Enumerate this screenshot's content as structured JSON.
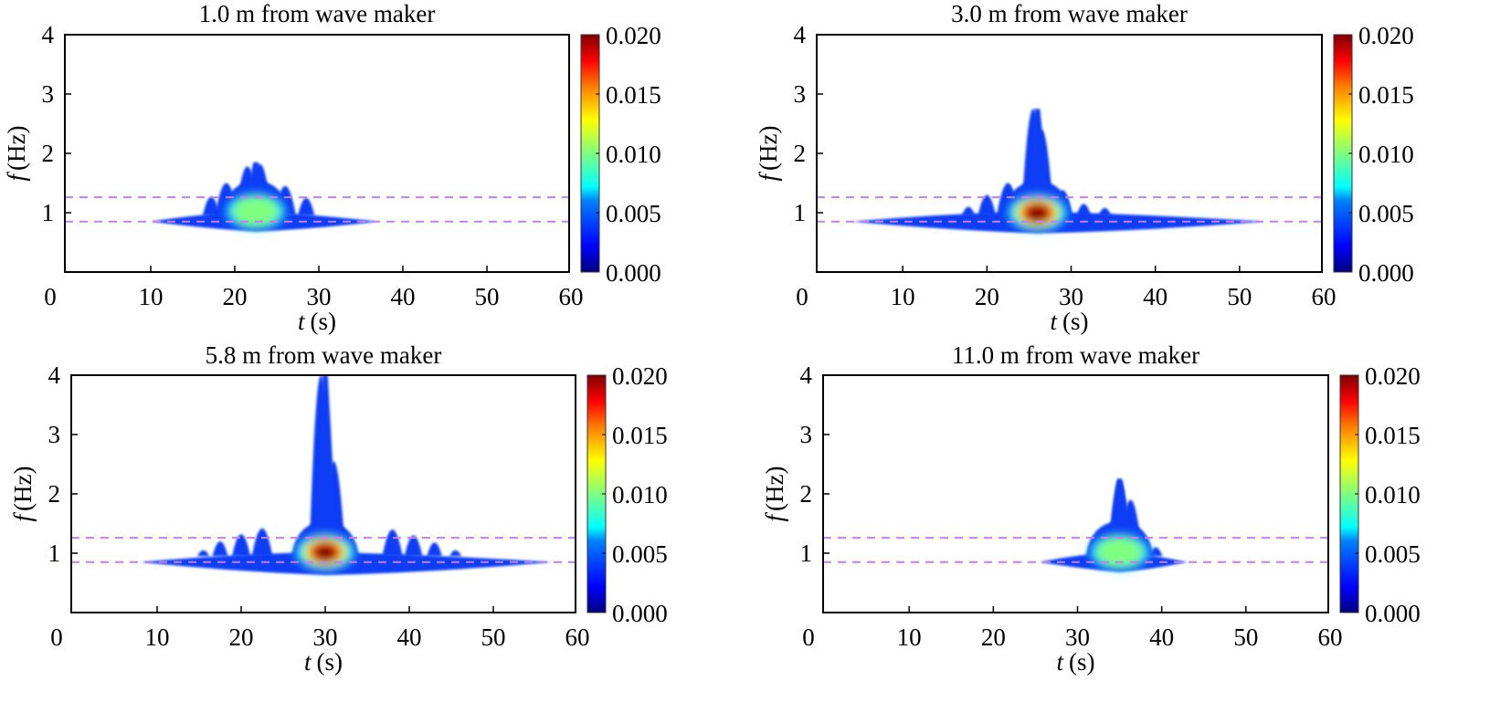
{
  "chart_data": [
    {
      "type": "heatmap",
      "title": "1.0 m from wave maker",
      "xlabel": "t (s)",
      "xlabel_italic": "t",
      "xlabel_unit": "(s)",
      "ylabel": "f (Hz)",
      "ylabel_italic": "f",
      "ylabel_unit": "(Hz)",
      "xlim": [
        0,
        60
      ],
      "ylim": [
        0,
        4
      ],
      "xticks": [
        0,
        10,
        20,
        30,
        40,
        50,
        60
      ],
      "yticks": [
        0,
        1,
        2,
        3,
        4
      ],
      "colorbar": {
        "range": [
          0,
          0.02
        ],
        "ticks": [
          "0.000",
          "0.005",
          "0.010",
          "0.015",
          "0.020"
        ],
        "colormap": "jet"
      },
      "reference_lines_hz": [
        0.85,
        1.26
      ],
      "energy_region": {
        "t_start": 10,
        "t_end": 37,
        "f_base": 0.85,
        "f_min": 0.68,
        "peak_t": 22.5,
        "peak_f": 1.0,
        "peak_value": 0.009,
        "max_f": 1.85
      },
      "features": [
        {
          "t": 17.2,
          "f": 1.27
        },
        {
          "t": 19,
          "f": 1.5
        },
        {
          "t": 21.5,
          "f": 1.78
        },
        {
          "t": 23,
          "f": 1.82
        },
        {
          "t": 26,
          "f": 1.45
        },
        {
          "t": 28.5,
          "f": 1.25
        }
      ]
    },
    {
      "type": "heatmap",
      "title": "3.0 m from wave maker",
      "xlabel": "t (s)",
      "xlabel_italic": "t",
      "xlabel_unit": "(s)",
      "ylabel": "f (Hz)",
      "ylabel_italic": "f",
      "ylabel_unit": "(Hz)",
      "xlim": [
        0,
        60
      ],
      "ylim": [
        0,
        4
      ],
      "xticks": [
        0,
        10,
        20,
        30,
        40,
        50,
        60
      ],
      "yticks": [
        0,
        1,
        2,
        3,
        4
      ],
      "colorbar": {
        "range": [
          0,
          0.02
        ],
        "ticks": [
          "0.000",
          "0.005",
          "0.010",
          "0.015",
          "0.020"
        ],
        "colormap": "jet"
      },
      "reference_lines_hz": [
        0.85,
        1.26
      ],
      "energy_region": {
        "t_start": 4,
        "t_end": 53,
        "f_base": 0.85,
        "f_min": 0.65,
        "peak_t": 26,
        "peak_f": 0.98,
        "peak_value": 0.02,
        "max_f": 2.75
      },
      "features": [
        {
          "t": 17.8,
          "f": 1.1
        },
        {
          "t": 20,
          "f": 1.3
        },
        {
          "t": 22.5,
          "f": 1.5
        },
        {
          "t": 25.5,
          "f": 2.75
        },
        {
          "t": 26.5,
          "f": 2.4
        },
        {
          "t": 29,
          "f": 1.38
        },
        {
          "t": 31.5,
          "f": 1.15
        },
        {
          "t": 34,
          "f": 1.08
        }
      ]
    },
    {
      "type": "heatmap",
      "title": "5.8 m from wave maker",
      "xlabel": "t (s)",
      "xlabel_italic": "t",
      "xlabel_unit": "(s)",
      "ylabel": "f (Hz)",
      "ylabel_italic": "f",
      "ylabel_unit": "(Hz)",
      "xlim": [
        0,
        60
      ],
      "ylim": [
        0,
        4
      ],
      "xticks": [
        0,
        10,
        20,
        30,
        40,
        50,
        60
      ],
      "yticks": [
        0,
        1,
        2,
        3,
        4
      ],
      "colorbar": {
        "range": [
          0,
          0.02
        ],
        "ticks": [
          "0.000",
          "0.005",
          "0.010",
          "0.015",
          "0.020"
        ],
        "colormap": "jet"
      },
      "reference_lines_hz": [
        0.85,
        1.26
      ],
      "energy_region": {
        "t_start": 8,
        "t_end": 57,
        "f_base": 0.85,
        "f_min": 0.63,
        "peak_t": 30,
        "peak_f": 1.0,
        "peak_value": 0.02,
        "max_f": 4.0
      },
      "features": [
        {
          "t": 15.5,
          "f": 1.05
        },
        {
          "t": 17.5,
          "f": 1.2
        },
        {
          "t": 20,
          "f": 1.32
        },
        {
          "t": 22.5,
          "f": 1.42
        },
        {
          "t": 29.5,
          "f": 4.0
        },
        {
          "t": 31,
          "f": 2.55
        },
        {
          "t": 38,
          "f": 1.4
        },
        {
          "t": 40.5,
          "f": 1.3
        },
        {
          "t": 43,
          "f": 1.18
        },
        {
          "t": 45.5,
          "f": 1.05
        }
      ]
    },
    {
      "type": "heatmap",
      "title": "11.0 m from wave maker",
      "xlabel": "t (s)",
      "xlabel_italic": "t",
      "xlabel_unit": "(s)",
      "ylabel": "f (Hz)",
      "ylabel_italic": "f",
      "ylabel_unit": "(Hz)",
      "xlim": [
        0,
        60
      ],
      "ylim": [
        0,
        4
      ],
      "xticks": [
        0,
        10,
        20,
        30,
        40,
        50,
        60
      ],
      "yticks": [
        0,
        1,
        2,
        3,
        4
      ],
      "colorbar": {
        "range": [
          0,
          0.02
        ],
        "ticks": [
          "0.000",
          "0.005",
          "0.010",
          "0.015",
          "0.020"
        ],
        "colormap": "jet"
      },
      "reference_lines_hz": [
        0.85,
        1.26
      ],
      "energy_region": {
        "t_start": 25.5,
        "t_end": 43,
        "f_base": 0.85,
        "f_min": 0.68,
        "peak_t": 35,
        "peak_f": 1.0,
        "peak_value": 0.009,
        "max_f": 2.25
      },
      "features": [
        {
          "t": 35,
          "f": 2.25
        },
        {
          "t": 36.3,
          "f": 1.9
        },
        {
          "t": 39.3,
          "f": 1.1
        }
      ]
    }
  ],
  "colors": {
    "reference_line": "#c77cf0",
    "axes": "#000000",
    "jet_stops": [
      "#00007f",
      "#0000ff",
      "#0080ff",
      "#00ffff",
      "#80ff80",
      "#ffff00",
      "#ff8000",
      "#ff0000",
      "#7f0000"
    ]
  }
}
